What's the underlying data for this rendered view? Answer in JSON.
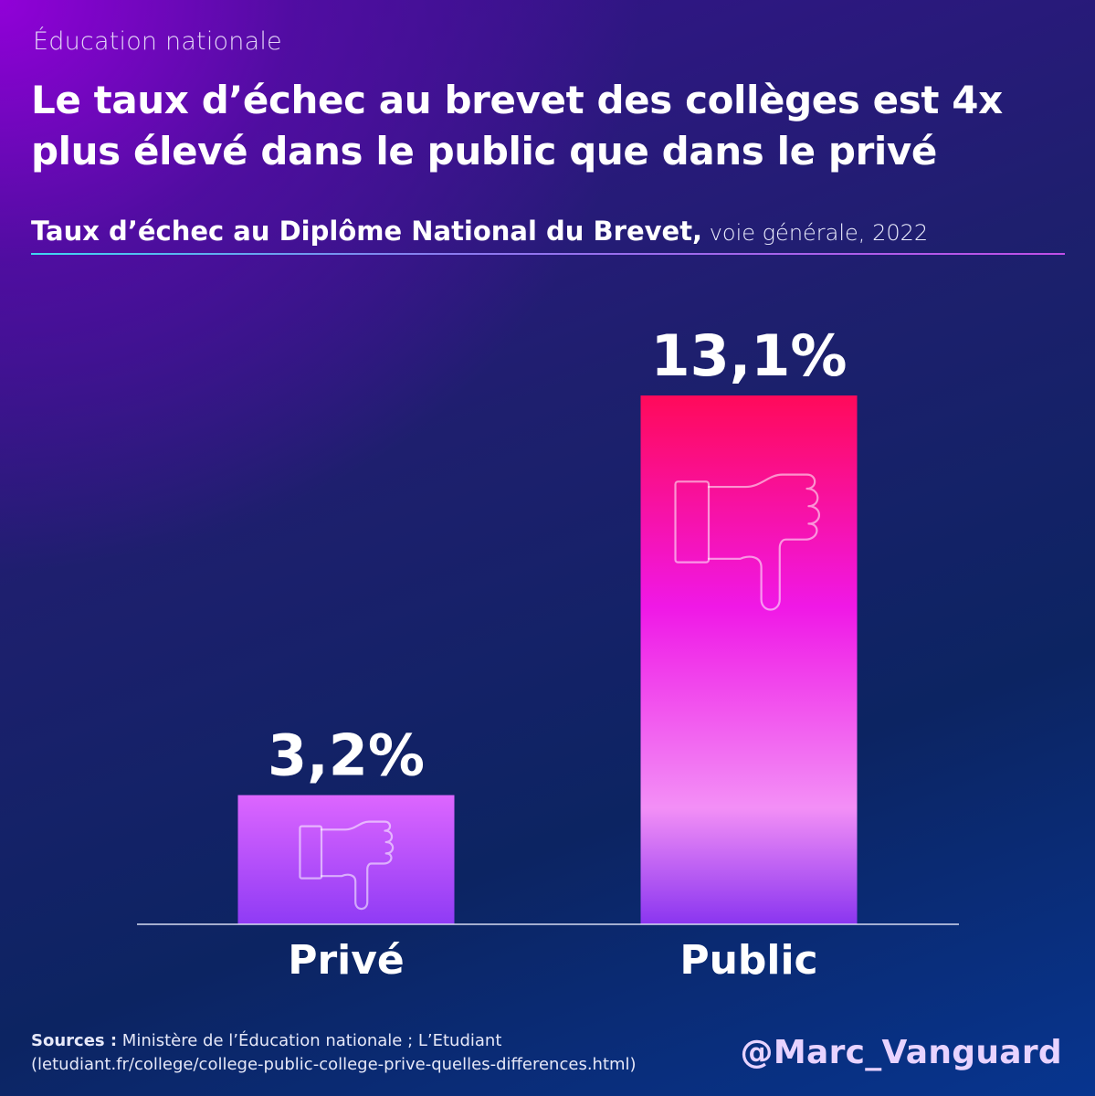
{
  "header": {
    "kicker": "Éducation nationale",
    "title": "Le taux d’échec au brevet des collèges est 4x plus élevé dans le public que dans le privé",
    "subtitle_main": "Taux d’échec au Diplôme National du Brevet,",
    "subtitle_rest": " voie générale, 2022"
  },
  "chart_data": {
    "type": "bar",
    "categories": [
      "Privé",
      "Public"
    ],
    "values": [
      3.2,
      13.1
    ],
    "value_labels": [
      "3,2%",
      "13,1%"
    ],
    "unit": "%",
    "ylim": [
      0,
      13.1
    ],
    "grid": false,
    "legend": "none",
    "bar_icon": "thumbs-down-icon",
    "colors": {
      "prive_top": "#dd66ff",
      "prive_bottom": "#8f3bf5",
      "public_top": "#ff0a5a",
      "public_mid": "#f018e6",
      "public_light": "#f38ff6",
      "public_bottom": "#8a35f0",
      "baseline": "#d7dcf2"
    }
  },
  "footer": {
    "sources_label": "Sources :",
    "sources_text": " Ministère de l’Éducation nationale ; L’Etudiant (letudiant.fr/college/college-public-college-prive-quelles-differences.html)",
    "handle": "@Marc_Vanguard"
  }
}
